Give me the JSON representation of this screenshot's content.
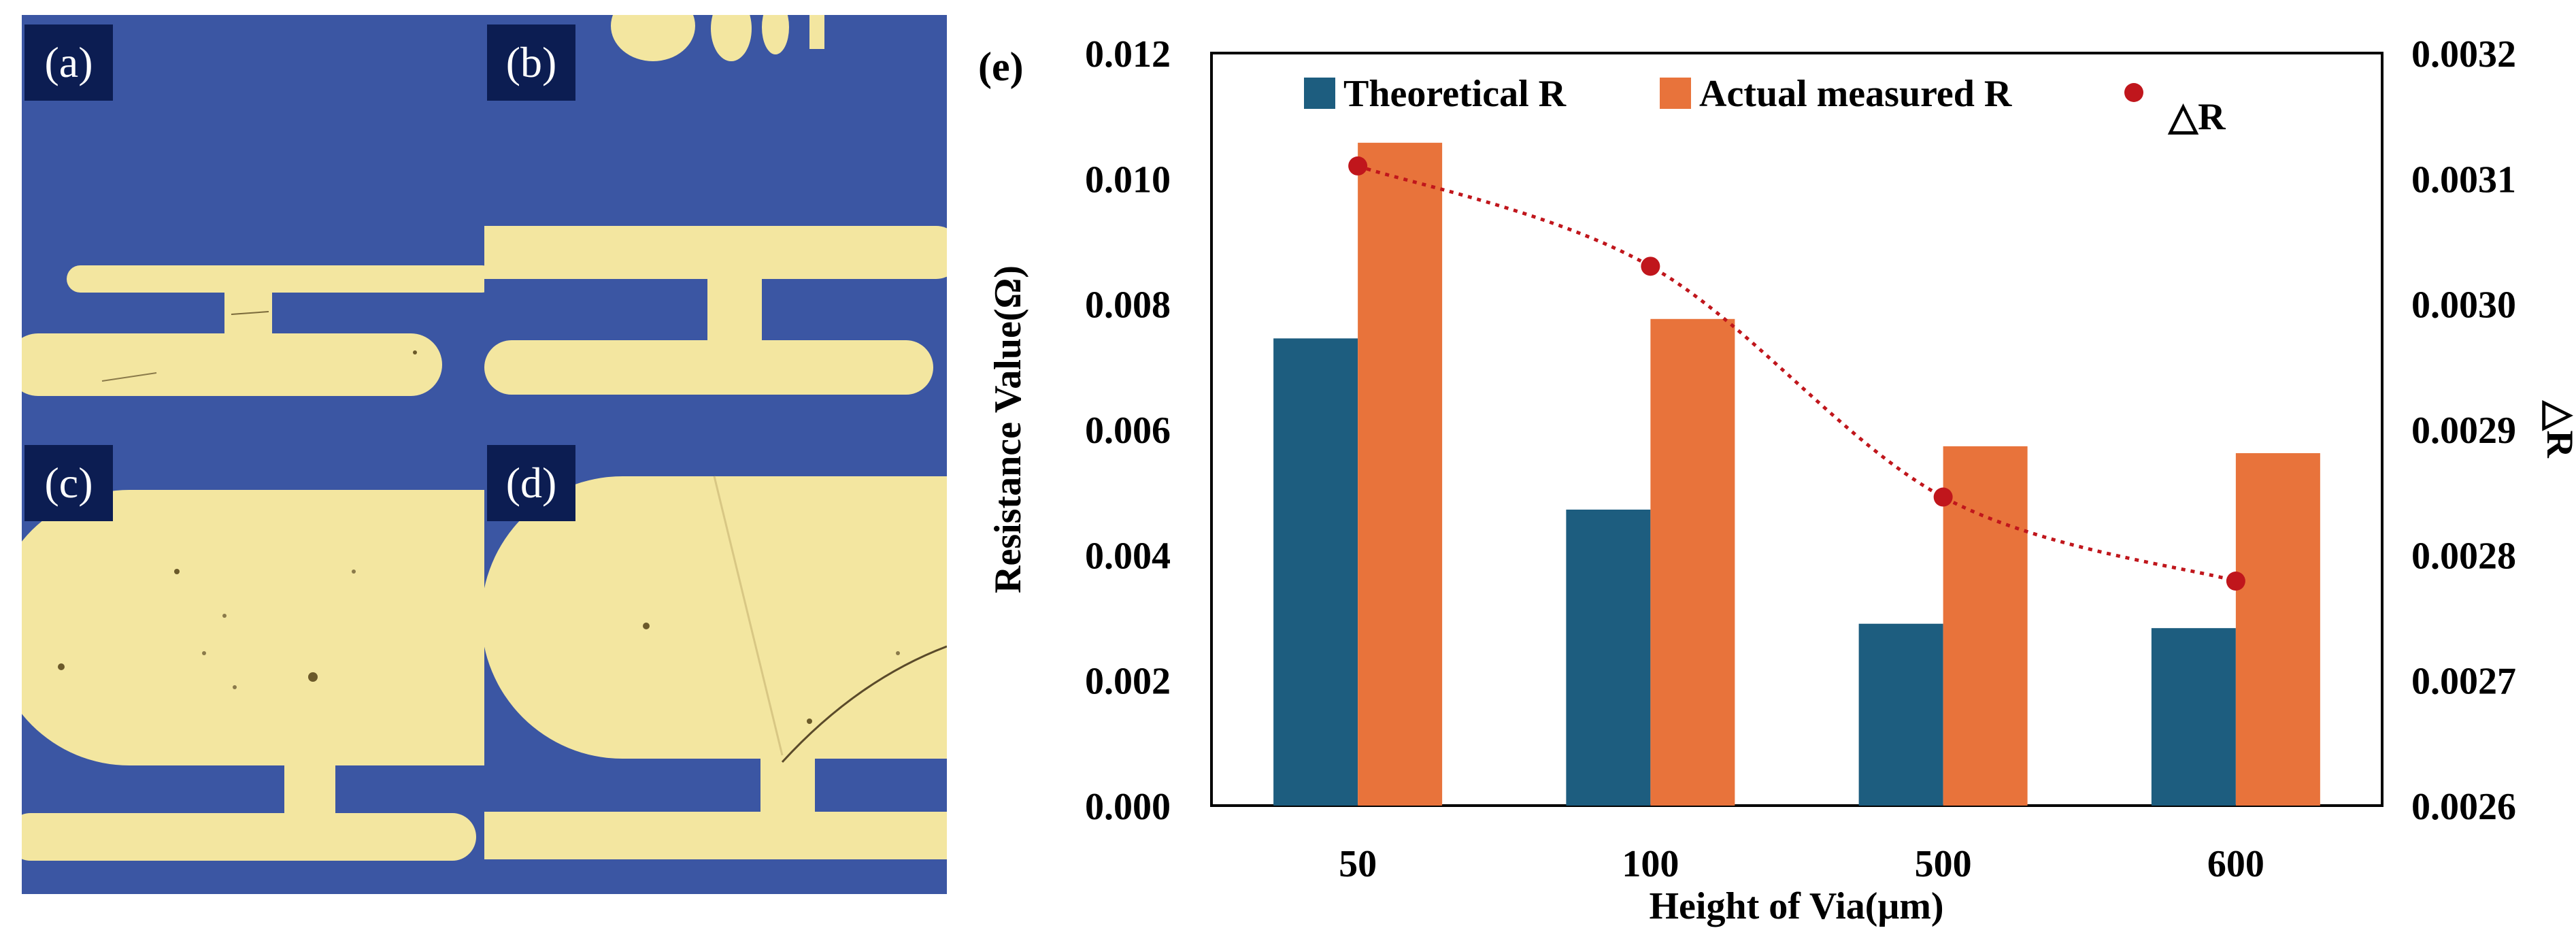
{
  "micrographs": [
    {
      "label": "(a)"
    },
    {
      "label": "(b)"
    },
    {
      "label": "(c)"
    },
    {
      "label": "(d)"
    }
  ],
  "panel_label": "(e)",
  "colors": {
    "theoretical": "#1d5d7f",
    "measured": "#e8733b",
    "delta": "#c0161c",
    "micro_bg": "#3b56a3",
    "metal": "#f3e6a0",
    "label_box": "#0c1d52"
  },
  "chart_data": {
    "type": "bar",
    "title": "",
    "xlabel": "Height of Via(μm)",
    "ylabel": "Resistance Value(Ω)",
    "y2label": "△R",
    "categories": [
      "50",
      "100",
      "500",
      "600"
    ],
    "ylim": [
      0,
      0.012
    ],
    "yticks": [
      "0.000",
      "0.002",
      "0.004",
      "0.006",
      "0.008",
      "0.010",
      "0.012"
    ],
    "y2lim": [
      0.0026,
      0.0032
    ],
    "y2ticks": [
      "0.0026",
      "0.0027",
      "0.0028",
      "0.0029",
      "0.0030",
      "0.0031",
      "0.0032"
    ],
    "series": [
      {
        "name": "Theoretical R",
        "type": "bar",
        "values": [
          0.00745,
          0.00472,
          0.0029,
          0.00283
        ]
      },
      {
        "name": "Actual measured R",
        "type": "bar",
        "values": [
          0.01057,
          0.00776,
          0.00573,
          0.00562
        ]
      },
      {
        "name": "△R",
        "type": "scatter",
        "axis": "y2",
        "values": [
          0.00311,
          0.00303,
          0.002846,
          0.002779
        ]
      }
    ],
    "legend": "top"
  }
}
